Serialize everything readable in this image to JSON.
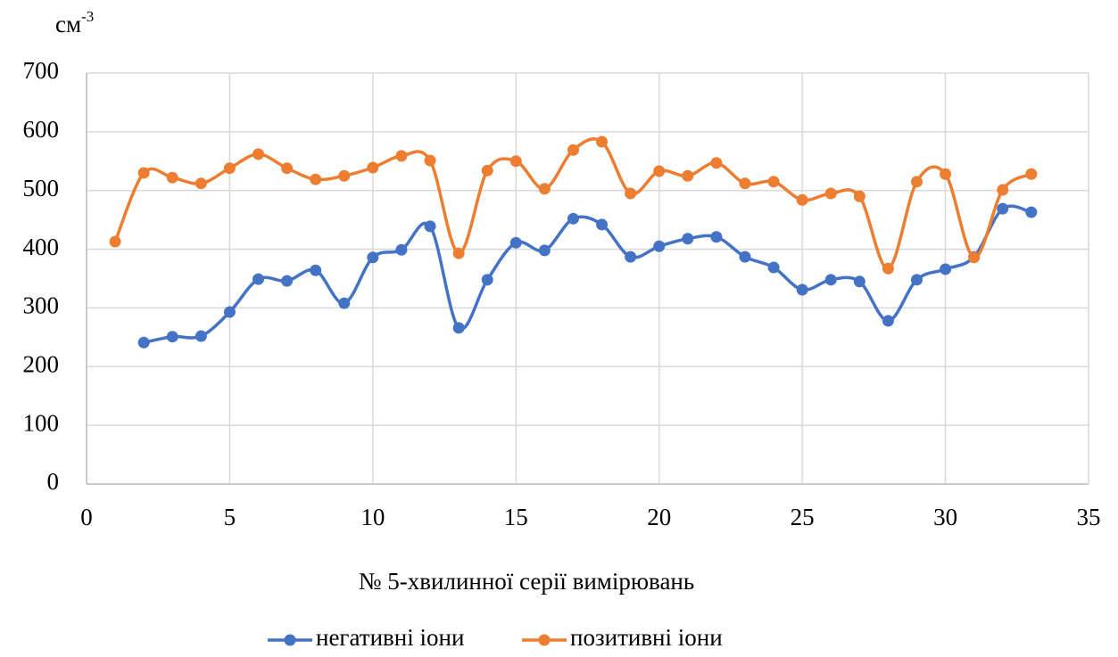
{
  "chart_data": {
    "type": "line",
    "y_unit": {
      "base": "см",
      "exponent": "-3"
    },
    "xlabel": "№ 5-хвилинної серії вимірювань",
    "x": [
      1,
      2,
      3,
      4,
      5,
      6,
      7,
      8,
      9,
      10,
      11,
      12,
      13,
      14,
      15,
      16,
      17,
      18,
      19,
      20,
      21,
      22,
      23,
      24,
      25,
      26,
      27,
      28,
      29,
      30,
      31,
      32,
      33
    ],
    "series": [
      {
        "name": "негативні іони",
        "color": "#4472c4",
        "values": [
          null,
          241,
          251,
          252,
          293,
          349,
          346,
          364,
          308,
          386,
          399,
          439,
          266,
          348,
          411,
          398,
          452,
          442,
          387,
          405,
          418,
          421,
          387,
          369,
          331,
          348,
          345,
          278,
          348,
          366,
          387,
          469,
          463
        ]
      },
      {
        "name": "позитивні іони",
        "color": "#ed7d31",
        "values": [
          413,
          530,
          522,
          512,
          538,
          562,
          538,
          519,
          525,
          539,
          559,
          551,
          393,
          534,
          550,
          503,
          569,
          583,
          495,
          533,
          525,
          547,
          512,
          515,
          484,
          495,
          490,
          367,
          515,
          528,
          386,
          501,
          528
        ]
      }
    ],
    "xlim": [
      0,
      35
    ],
    "xticks": [
      0,
      5,
      10,
      15,
      20,
      25,
      30,
      35
    ],
    "ylim": [
      0,
      700
    ],
    "yticks": [
      0,
      100,
      200,
      300,
      400,
      500,
      600,
      700
    ],
    "grid": true,
    "smooth": true,
    "legend": "bottom"
  }
}
